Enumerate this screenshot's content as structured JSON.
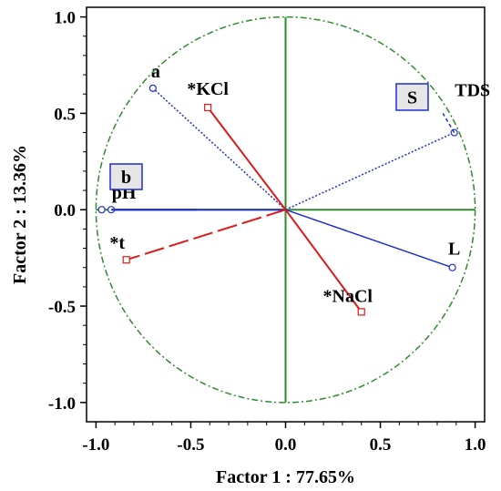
{
  "chart_data": {
    "type": "scatter",
    "subtype": "pca-correlation-circle",
    "xlabel": "Factor 1 : 77.65%",
    "ylabel": "Factor 2 : 13.36%",
    "xlim": [
      -1.05,
      1.05
    ],
    "ylim": [
      -1.1,
      1.05
    ],
    "xticks": [
      "-1.0",
      "-0.5",
      "0.0",
      "0.5",
      "1.0"
    ],
    "xtick_values": [
      -1.0,
      -0.5,
      0.0,
      0.5,
      1.0
    ],
    "yticks": [
      "1.0",
      "0.5",
      "0.0",
      "-0.5",
      "-1.0"
    ],
    "ytick_values": [
      1.0,
      0.5,
      0.0,
      -0.5,
      -1.0
    ],
    "grid": false,
    "unit_circle": true,
    "colors": {
      "circle": "#2e8b2e",
      "active": "#1f2fd0",
      "supplementary": "#e01818",
      "box_fill": "#e6e6e6"
    },
    "active_variables": [
      {
        "name": "a",
        "x": -0.7,
        "y": 0.63
      },
      {
        "name": "TDS",
        "x": 0.89,
        "y": 0.4
      },
      {
        "name": "L",
        "x": 0.88,
        "y": -0.3
      },
      {
        "name": "pH",
        "x": -0.92,
        "y": 0.0
      }
    ],
    "supplementary_variables": [
      {
        "name": "*KCl",
        "x": -0.41,
        "y": 0.53
      },
      {
        "name": "*t",
        "x": -0.84,
        "y": -0.26
      },
      {
        "name": "*NaCl",
        "x": 0.4,
        "y": -0.53
      }
    ],
    "boxed_annotations": [
      {
        "name": "S",
        "x": 0.93,
        "y": 0.38
      },
      {
        "name": "b",
        "x": -0.98,
        "y": 0.0
      }
    ]
  }
}
